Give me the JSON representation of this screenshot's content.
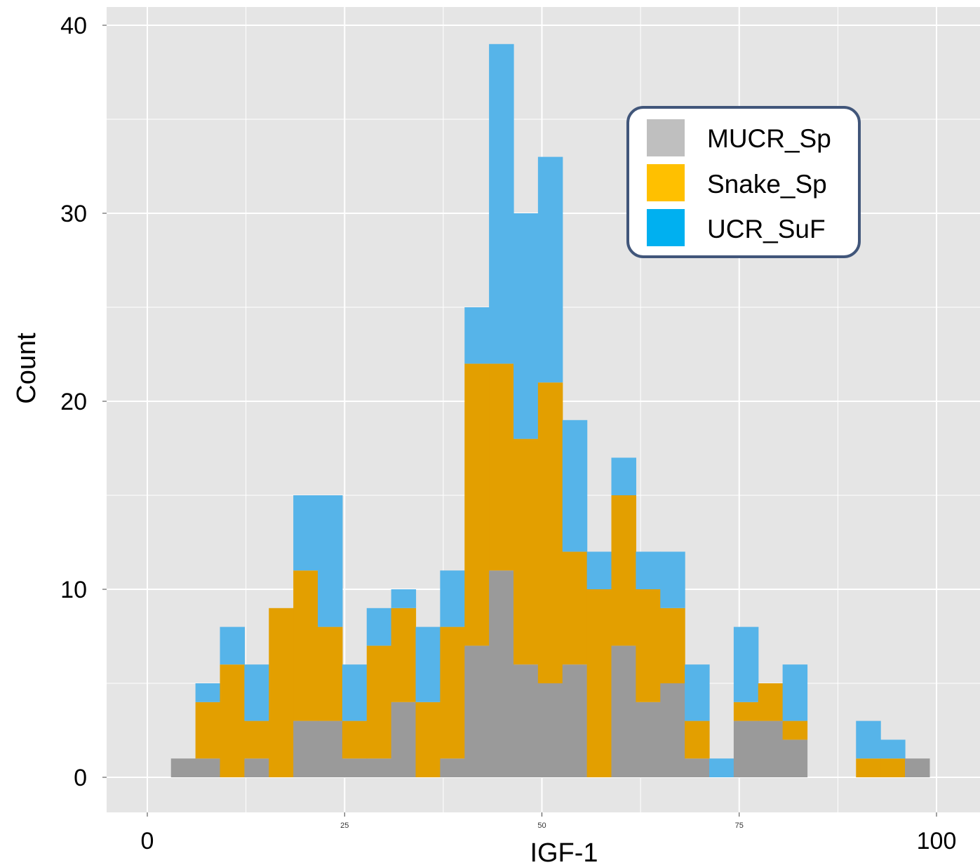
{
  "chart_data": {
    "type": "bar",
    "stacked": true,
    "bin_start": 3,
    "bin_width": 3.1,
    "xlim": [
      -5,
      105
    ],
    "ylim": [
      -1.5,
      40
    ],
    "xlabel": "IGF-1",
    "ylabel": "Count",
    "y_ticks": [
      0,
      10,
      20,
      30,
      40
    ],
    "x_ticks_small": [
      {
        "value": 25,
        "label": "25"
      },
      {
        "value": 50,
        "label": "50"
      },
      {
        "value": 75,
        "label": "75"
      }
    ],
    "x_ticks_big": [
      {
        "value": 0,
        "label": "0"
      },
      {
        "value": 100,
        "label": "100"
      }
    ],
    "grid": true,
    "legend_position": "top-right",
    "series": [
      {
        "name": "MUCR_Sp",
        "color": "#9a9a9a",
        "legend_color": "#bfbfbf",
        "values": [
          1,
          1,
          0,
          1,
          0,
          3,
          3,
          1,
          1,
          4,
          0,
          1,
          7,
          11,
          6,
          5,
          6,
          0,
          7,
          4,
          5,
          1,
          0,
          3,
          3,
          2,
          0,
          0,
          0,
          0,
          1
        ]
      },
      {
        "name": "Snake_Sp",
        "color": "#e39f00",
        "legend_color": "#ffc000",
        "values": [
          0,
          3,
          6,
          2,
          9,
          8,
          5,
          2,
          6,
          5,
          4,
          7,
          15,
          11,
          12,
          16,
          6,
          10,
          8,
          6,
          4,
          2,
          0,
          1,
          2,
          1,
          0,
          0,
          1,
          1,
          0
        ]
      },
      {
        "name": "UCR_SuF",
        "color": "#56b4e9",
        "legend_color": "#00b0f0",
        "values": [
          0,
          1,
          2,
          3,
          0,
          4,
          7,
          3,
          2,
          1,
          4,
          3,
          3,
          17,
          12,
          12,
          7,
          2,
          2,
          2,
          3,
          3,
          1,
          4,
          0,
          3,
          0,
          0,
          2,
          1,
          0
        ]
      }
    ]
  }
}
